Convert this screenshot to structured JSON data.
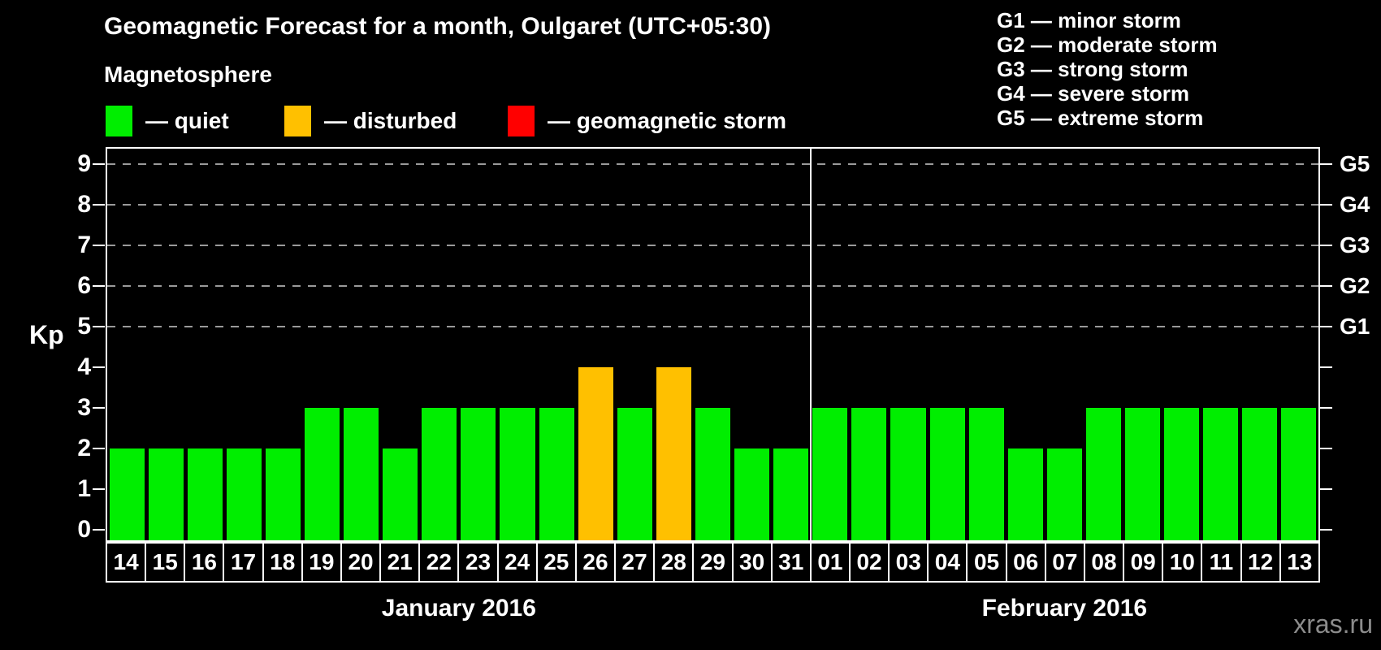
{
  "header": {
    "title": "Geomagnetic Forecast for a month, Oulgaret (UTC+05:30)",
    "subtitle": "Magnetosphere"
  },
  "legend": {
    "items": [
      {
        "label": "— quiet",
        "status": "quiet",
        "color": "#00ee00"
      },
      {
        "label": "— disturbed",
        "status": "disturbed",
        "color": "#ffc000"
      },
      {
        "label": "— geomagnetic storm",
        "status": "storm",
        "color": "#ff0000"
      }
    ]
  },
  "g_scale_legend": {
    "items": [
      "G1 — minor storm",
      "G2 — moderate storm",
      "G3 — strong storm",
      "G4 — severe storm",
      "G5 — extreme storm"
    ]
  },
  "watermark": "xras.ru",
  "chart_data": {
    "type": "bar",
    "title": "Geomagnetic Forecast for a month, Oulgaret (UTC+05:30)",
    "xlabel": "",
    "ylabel": "Kp",
    "ylim": [
      0,
      9
    ],
    "yticks": [
      0,
      1,
      2,
      3,
      4,
      5,
      6,
      7,
      8,
      9
    ],
    "gridlines_at": [
      5,
      6,
      7,
      8,
      9
    ],
    "grid": "dashed",
    "right_axis_labels": [
      {
        "kp": 5,
        "label": "G1"
      },
      {
        "kp": 6,
        "label": "G2"
      },
      {
        "kp": 7,
        "label": "G3"
      },
      {
        "kp": 8,
        "label": "G4"
      },
      {
        "kp": 9,
        "label": "G5"
      }
    ],
    "status_colors": {
      "quiet": "#00ee00",
      "disturbed": "#ffc000",
      "storm": "#ff0000"
    },
    "months": [
      {
        "label": "January 2016",
        "days": 18
      },
      {
        "label": "February 2016",
        "days": 13
      }
    ],
    "bars": [
      {
        "month": "January 2016",
        "day": "14",
        "kp": 2,
        "status": "quiet"
      },
      {
        "month": "January 2016",
        "day": "15",
        "kp": 2,
        "status": "quiet"
      },
      {
        "month": "January 2016",
        "day": "16",
        "kp": 2,
        "status": "quiet"
      },
      {
        "month": "January 2016",
        "day": "17",
        "kp": 2,
        "status": "quiet"
      },
      {
        "month": "January 2016",
        "day": "18",
        "kp": 2,
        "status": "quiet"
      },
      {
        "month": "January 2016",
        "day": "19",
        "kp": 3,
        "status": "quiet"
      },
      {
        "month": "January 2016",
        "day": "20",
        "kp": 3,
        "status": "quiet"
      },
      {
        "month": "January 2016",
        "day": "21",
        "kp": 2,
        "status": "quiet"
      },
      {
        "month": "January 2016",
        "day": "22",
        "kp": 3,
        "status": "quiet"
      },
      {
        "month": "January 2016",
        "day": "23",
        "kp": 3,
        "status": "quiet"
      },
      {
        "month": "January 2016",
        "day": "24",
        "kp": 3,
        "status": "quiet"
      },
      {
        "month": "January 2016",
        "day": "25",
        "kp": 3,
        "status": "quiet"
      },
      {
        "month": "January 2016",
        "day": "26",
        "kp": 4,
        "status": "disturbed"
      },
      {
        "month": "January 2016",
        "day": "27",
        "kp": 3,
        "status": "quiet"
      },
      {
        "month": "January 2016",
        "day": "28",
        "kp": 4,
        "status": "disturbed"
      },
      {
        "month": "January 2016",
        "day": "29",
        "kp": 3,
        "status": "quiet"
      },
      {
        "month": "January 2016",
        "day": "30",
        "kp": 2,
        "status": "quiet"
      },
      {
        "month": "January 2016",
        "day": "31",
        "kp": 2,
        "status": "quiet"
      },
      {
        "month": "February 2016",
        "day": "01",
        "kp": 3,
        "status": "quiet"
      },
      {
        "month": "February 2016",
        "day": "02",
        "kp": 3,
        "status": "quiet"
      },
      {
        "month": "February 2016",
        "day": "03",
        "kp": 3,
        "status": "quiet"
      },
      {
        "month": "February 2016",
        "day": "04",
        "kp": 3,
        "status": "quiet"
      },
      {
        "month": "February 2016",
        "day": "05",
        "kp": 3,
        "status": "quiet"
      },
      {
        "month": "February 2016",
        "day": "06",
        "kp": 2,
        "status": "quiet"
      },
      {
        "month": "February 2016",
        "day": "07",
        "kp": 2,
        "status": "quiet"
      },
      {
        "month": "February 2016",
        "day": "08",
        "kp": 3,
        "status": "quiet"
      },
      {
        "month": "February 2016",
        "day": "09",
        "kp": 3,
        "status": "quiet"
      },
      {
        "month": "February 2016",
        "day": "10",
        "kp": 3,
        "status": "quiet"
      },
      {
        "month": "February 2016",
        "day": "11",
        "kp": 3,
        "status": "quiet"
      },
      {
        "month": "February 2016",
        "day": "12",
        "kp": 3,
        "status": "quiet"
      },
      {
        "month": "February 2016",
        "day": "13",
        "kp": 3,
        "status": "quiet"
      }
    ]
  }
}
